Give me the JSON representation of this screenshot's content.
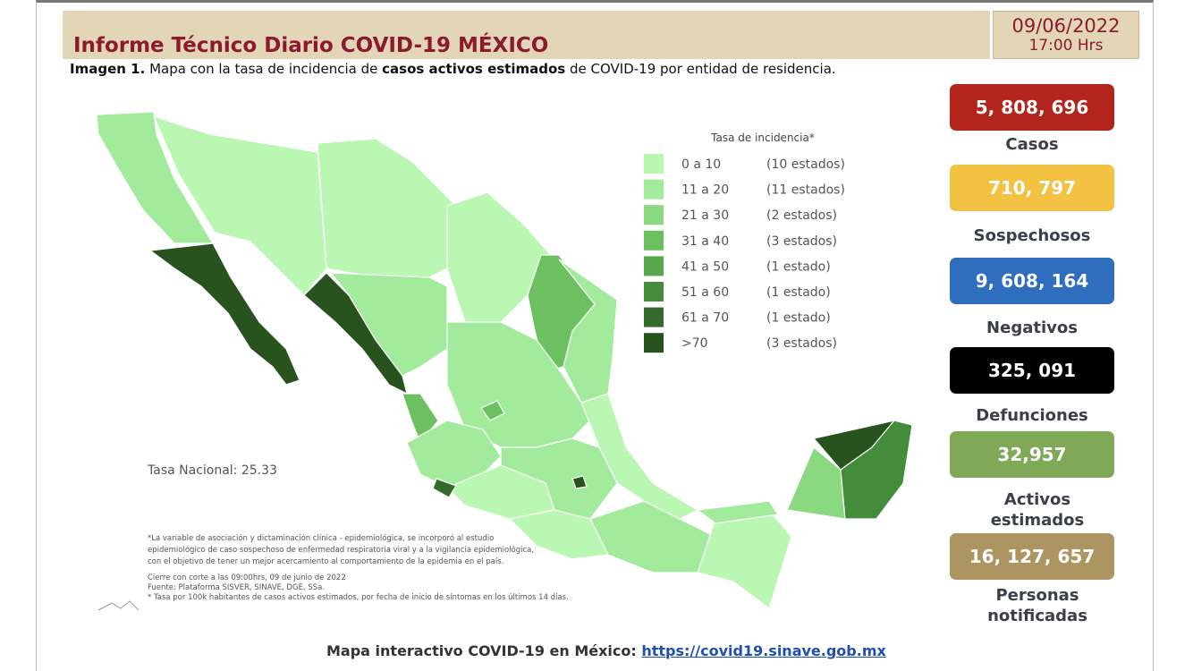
{
  "header": {
    "title": "Informe Técnico Diario COVID-19 MÉXICO",
    "date": "09/06/2022",
    "time": "17:00 Hrs"
  },
  "caption": {
    "prefix": "Imagen 1.",
    "text1": "Mapa con la tasa de incidencia de",
    "bold": "casos activos estimados",
    "text2": "de COVID-19 por entidad de residencia."
  },
  "legend": {
    "title": "Tasa de incidencia*",
    "items": [
      {
        "range": "0 a 10",
        "count": "(10 estados)",
        "color": "#baf7b2"
      },
      {
        "range": "11 a 20",
        "count": "(11 estados)",
        "color": "#a3eb9c"
      },
      {
        "range": "21 a 30",
        "count": "(2 estados)",
        "color": "#8ad980"
      },
      {
        "range": "31 a 40",
        "count": "(3 estados)",
        "color": "#6cc05f"
      },
      {
        "range": "41 a 50",
        "count": "(1 estado)",
        "color": "#56a84b"
      },
      {
        "range": "51 a 60",
        "count": "(1 estado)",
        "color": "#428c3a"
      },
      {
        "range": "61 a 70",
        "count": "(1 estado)",
        "color": "#346b2c"
      },
      {
        "range": ">70",
        "count": "(3 estados)",
        "color": "#28531f"
      }
    ]
  },
  "national_rate": "Tasa Nacional: 25.33",
  "notes": [
    "*La variable de asociación y dictaminación clínica - epidemiológica, se incorporó al estudio",
    "epidemiológico de caso sospechoso de enfermedad respiratoria viral y a la vigilancia epidemiológica,",
    "con el objetivo de tener un mejor acercamiento al comportamiento de la epidemia en el país.",
    "Cierre con corte a las 09:00hrs, 09 de junio de 2022",
    "Fuente: Plataforma SISVER, SINAVE, DGE, SSa.",
    "* Tasa por 100k habitantes de casos activos estimados, por fecha de inicio de síntomas en los últimos 14 días."
  ],
  "stats": [
    {
      "value": "5, 808, 696",
      "label": "Casos",
      "color": "#b3241c"
    },
    {
      "value": "710, 797",
      "label": "Sospechosos",
      "color": "#f4c242"
    },
    {
      "value": "9, 608, 164",
      "label": "Negativos",
      "color": "#2f6dbf"
    },
    {
      "value": "325, 091",
      "label": "Defunciones",
      "color": "#000000"
    },
    {
      "value": "32,957",
      "label": "Activos estimados",
      "color": "#7fa956"
    },
    {
      "value": "16, 127, 657",
      "label": "Personas notificadas",
      "color": "#ad9562"
    }
  ],
  "footer": {
    "label": "Mapa interactivo COVID-19 en México:",
    "link": "https://covid19.sinave.gob.mx"
  }
}
